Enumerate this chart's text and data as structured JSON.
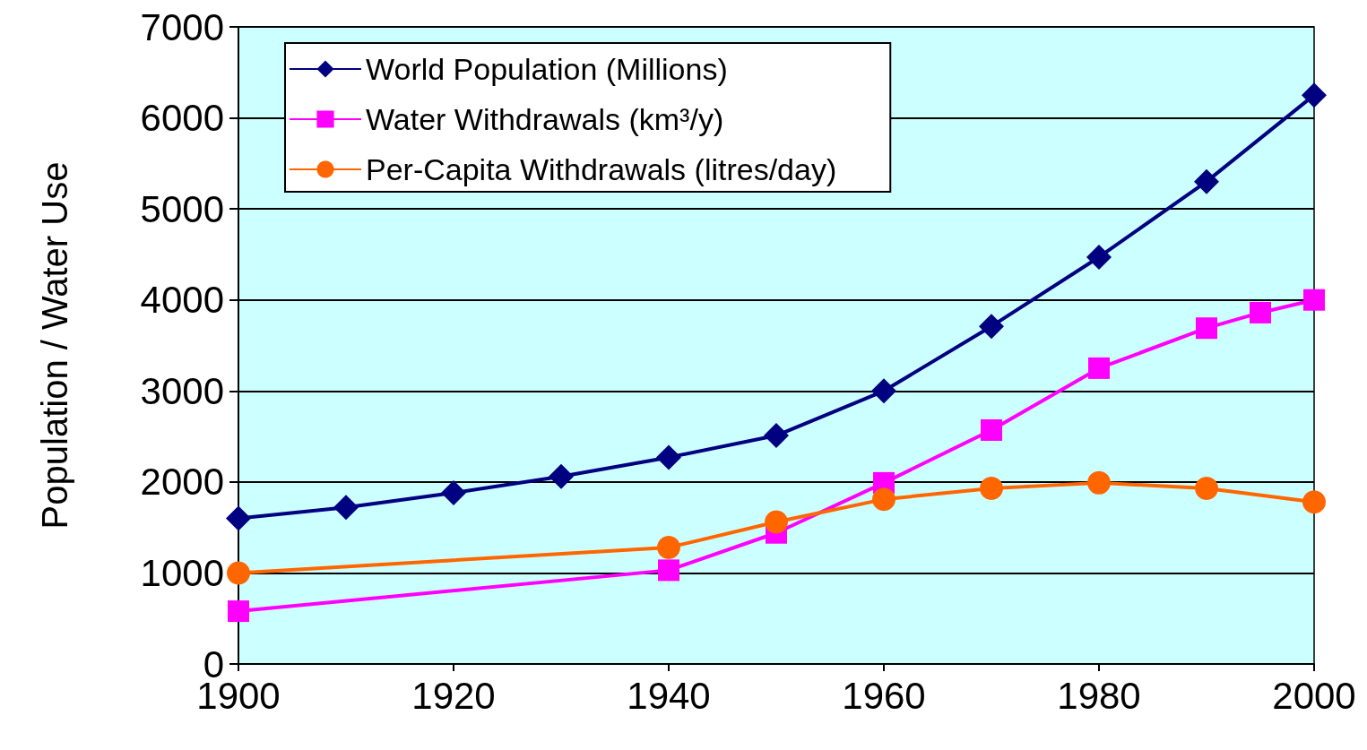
{
  "chart_data": {
    "type": "line",
    "ylabel": "Population / Water Use",
    "xlim": [
      1900,
      2000
    ],
    "xticks": [
      1900,
      1920,
      1940,
      1960,
      1980,
      2000
    ],
    "ylim": [
      0,
      7000
    ],
    "yticks": [
      0,
      1000,
      2000,
      3000,
      4000,
      5000,
      6000,
      7000
    ],
    "grid": "y",
    "legend": "top left",
    "series": [
      {
        "name": "World Population (Millions)",
        "color": "#000080",
        "marker": "diamond",
        "x": [
          1900,
          1910,
          1920,
          1930,
          1940,
          1950,
          1960,
          1970,
          1980,
          1990,
          2000
        ],
        "values": [
          1600,
          1720,
          1880,
          2060,
          2270,
          2510,
          3000,
          3710,
          4470,
          5300,
          6250
        ]
      },
      {
        "name": "Water Withdrawals (km³/y)",
        "color": "#ff00ff",
        "marker": "square",
        "x": [
          1900,
          1940,
          1950,
          1960,
          1970,
          1980,
          1990,
          1995,
          2000
        ],
        "values": [
          580,
          1030,
          1440,
          1990,
          2570,
          3250,
          3690,
          3860,
          4000
        ]
      },
      {
        "name": "Per-Capita Withdrawals (litres/day)",
        "color": "#ff6600",
        "marker": "circle",
        "x": [
          1900,
          1940,
          1950,
          1960,
          1970,
          1980,
          1990,
          2000
        ],
        "values": [
          1000,
          1280,
          1560,
          1810,
          1930,
          1990,
          1930,
          1780
        ]
      }
    ]
  }
}
